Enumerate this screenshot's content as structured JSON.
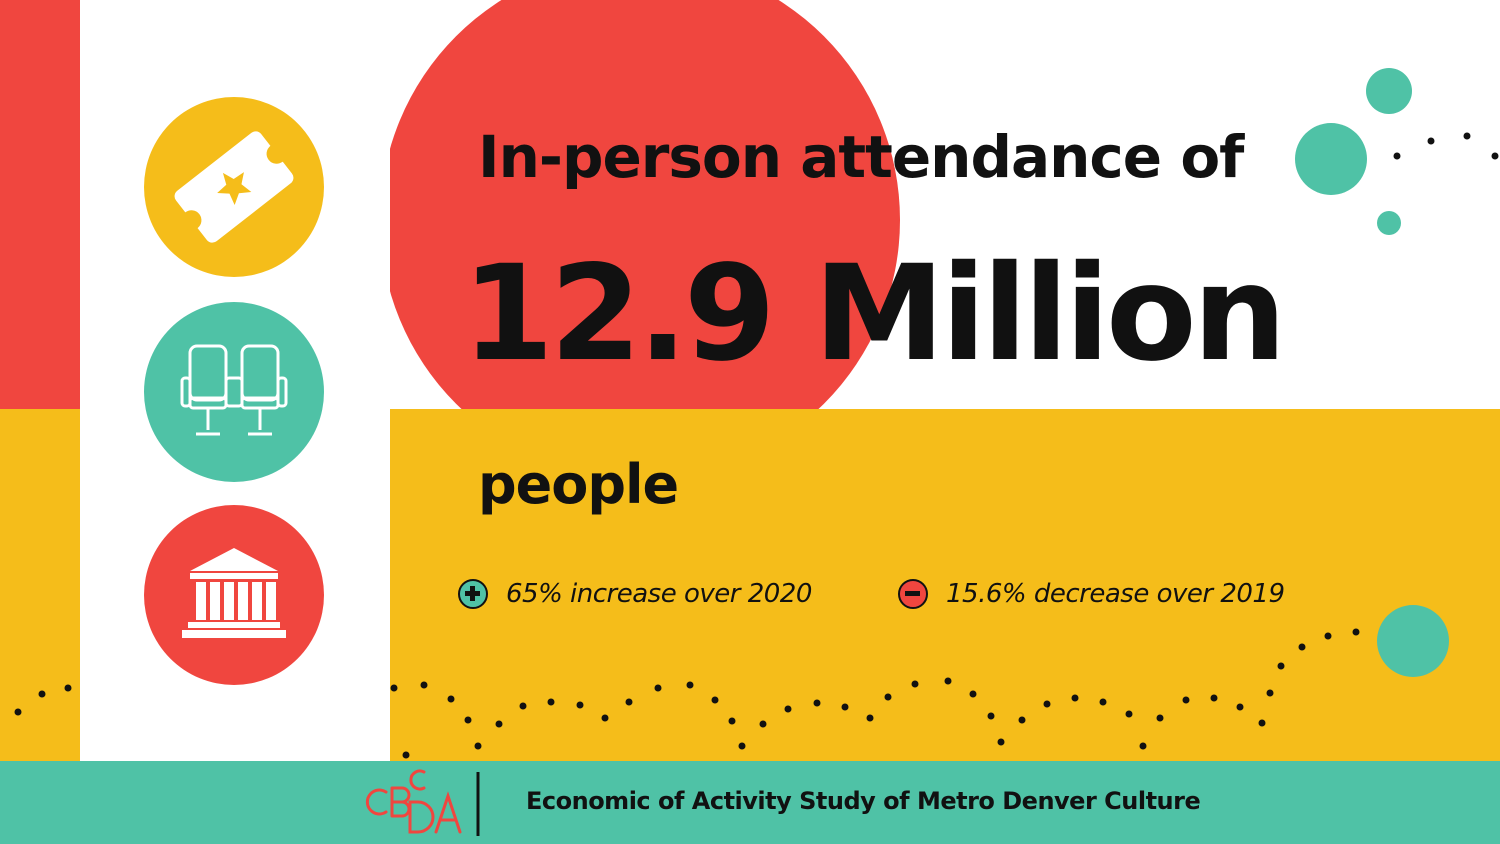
{
  "headline": "In-person attendance of",
  "big_number": "12.9 Million",
  "unit": "people",
  "stats": [
    {
      "icon": "plus-circle-icon",
      "text": "65% increase over 2020"
    },
    {
      "icon": "minus-circle-icon",
      "text": "15.6% decrease over 2019"
    }
  ],
  "icons": [
    "ticket-icon",
    "theater-seats-icon",
    "museum-icon"
  ],
  "footer": {
    "logo_text": "CBCA",
    "title": "Economic of Activity Study of Metro Denver Culture"
  },
  "colors": {
    "red": "#f0463f",
    "yellow": "#f5bd1a",
    "teal": "#4fc2a6",
    "text": "#111111",
    "white": "#ffffff"
  }
}
